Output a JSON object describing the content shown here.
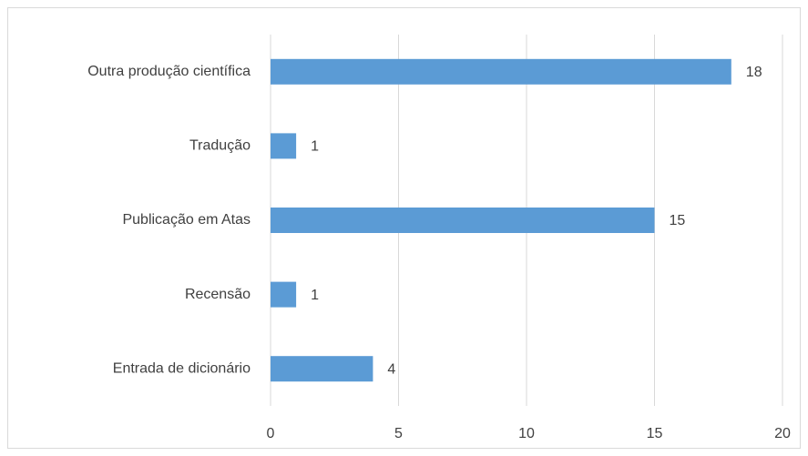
{
  "chart_data": {
    "type": "bar",
    "orientation": "horizontal",
    "categories": [
      "Outra produção científica",
      "Tradução",
      "Publicação em Atas",
      "Recensão",
      "Entrada de dicionário"
    ],
    "values": [
      18,
      1,
      15,
      1,
      4
    ],
    "color": "#5b9bd5",
    "xlim": [
      0,
      20
    ],
    "xticks": [
      0,
      5,
      10,
      15,
      20
    ],
    "grid": true
  }
}
